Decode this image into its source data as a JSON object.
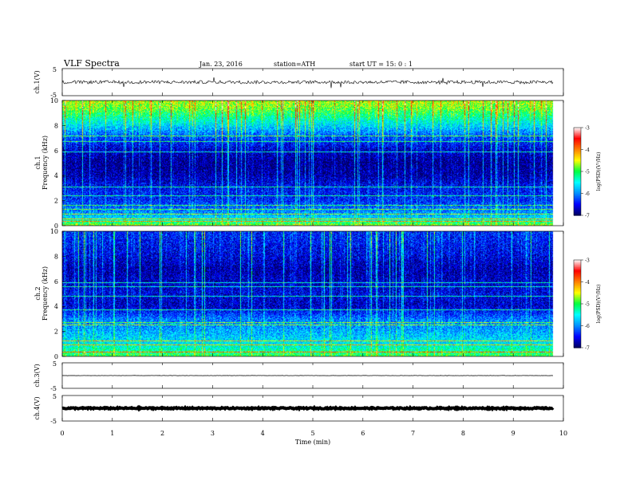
{
  "header": {
    "title": "VLF  Spectra",
    "date": "Jan. 23, 2016",
    "station": "station=ATH",
    "start": "start  UT =   15: 0  : 1"
  },
  "chart_data": {
    "type": "heatmap",
    "time_axis": {
      "label": "Time  (min)",
      "range": [
        0,
        10
      ],
      "ticks": [
        "0",
        "1",
        "2",
        "3",
        "4",
        "5",
        "6",
        "7",
        "8",
        "9",
        "10"
      ],
      "data_end": 9.8
    },
    "panels": [
      {
        "id": "ch1-waveform",
        "kind": "waveform",
        "ylabel": "ch.1(V)",
        "yticks": [
          "5",
          "-5"
        ],
        "range": [
          -5,
          5
        ],
        "baseline": 0,
        "noise": 0.6
      },
      {
        "id": "ch1-spectrogram",
        "kind": "spectrogram",
        "ylabel": "Frequency  (kHz)",
        "channel_label": "ch.1",
        "yrange": [
          0,
          10
        ],
        "yticks": [
          "0",
          "2",
          "4",
          "6",
          "8",
          "10"
        ],
        "profile": [
          {
            "f": 0,
            "v": -4.8
          },
          {
            "f": 0.5,
            "v": -5.6
          },
          {
            "f": 1,
            "v": -6.0
          },
          {
            "f": 2,
            "v": -6.4
          },
          {
            "f": 3,
            "v": -6.5
          },
          {
            "f": 4,
            "v": -6.8
          },
          {
            "f": 5,
            "v": -6.9
          },
          {
            "f": 6,
            "v": -6.7
          },
          {
            "f": 7,
            "v": -6.3
          },
          {
            "f": 8,
            "v": -5.7
          },
          {
            "f": 8.8,
            "v": -5.2
          },
          {
            "f": 9.5,
            "v": -4.8
          },
          {
            "f": 10,
            "v": -4.7
          }
        ],
        "lines_khz": [
          0.3,
          0.5,
          0.9,
          1.3,
          1.6,
          2.4,
          3.1,
          5.9,
          6.7,
          7.2
        ]
      },
      {
        "id": "ch2-spectrogram",
        "kind": "spectrogram",
        "ylabel": "Frequency  (kHz)",
        "channel_label": "ch.2",
        "yrange": [
          0,
          10
        ],
        "yticks": [
          "0",
          "2",
          "4",
          "6",
          "8",
          "10"
        ],
        "profile": [
          {
            "f": 0,
            "v": -5.0
          },
          {
            "f": 0.5,
            "v": -5.3
          },
          {
            "f": 1,
            "v": -5.6
          },
          {
            "f": 2,
            "v": -5.9
          },
          {
            "f": 3,
            "v": -6.1
          },
          {
            "f": 4,
            "v": -6.7
          },
          {
            "f": 5,
            "v": -6.6
          },
          {
            "f": 6,
            "v": -6.7
          },
          {
            "f": 7,
            "v": -6.8
          },
          {
            "f": 8,
            "v": -6.6
          },
          {
            "f": 9,
            "v": -6.5
          },
          {
            "f": 10,
            "v": -6.4
          }
        ],
        "lines_khz": [
          0.3,
          0.9,
          1.2,
          2.5,
          2.7,
          3.7,
          4.8,
          5.6,
          5.9
        ]
      },
      {
        "id": "ch3-waveform",
        "kind": "waveform",
        "ylabel": "ch.3(V)",
        "yticks": [
          "5",
          "-5"
        ],
        "range": [
          -5,
          5
        ],
        "baseline": 0,
        "noise": 0.05
      },
      {
        "id": "ch4-waveform",
        "kind": "waveform",
        "ylabel": "ch.4(V)",
        "yticks": [
          "5",
          "-5"
        ],
        "range": [
          -5,
          5
        ],
        "baseline": 0,
        "noise": 0.25
      }
    ],
    "colorbar": {
      "label": "log(PSD)(V²/Hz)",
      "range": [
        -7,
        -3
      ],
      "ticks": [
        "-3",
        "-4",
        "-5",
        "-6",
        "-7"
      ],
      "colors": [
        "#000060",
        "#0000ff",
        "#0090ff",
        "#00ffff",
        "#00ff40",
        "#ffff00",
        "#ff8000",
        "#ff0000",
        "#ffffff"
      ]
    }
  }
}
